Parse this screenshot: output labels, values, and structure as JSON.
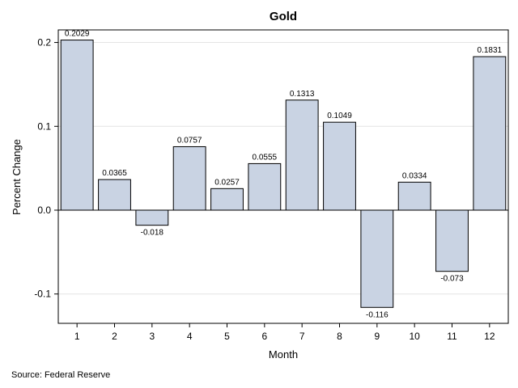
{
  "chart_data": {
    "type": "bar",
    "title": "Gold",
    "xlabel": "Month",
    "ylabel": "Percent Change",
    "categories": [
      "1",
      "2",
      "3",
      "4",
      "5",
      "6",
      "7",
      "8",
      "9",
      "10",
      "11",
      "12"
    ],
    "values": [
      0.2029,
      0.0365,
      -0.018,
      0.0757,
      0.0257,
      0.0555,
      0.1313,
      0.1049,
      -0.116,
      0.0334,
      -0.073,
      0.1831
    ],
    "value_labels": [
      "0.2029",
      "0.0365",
      "-0.018",
      "0.0757",
      "0.0257",
      "0.0555",
      "0.1313",
      "0.1049",
      "-0.116",
      "0.0334",
      "-0.073",
      "0.1831"
    ],
    "ylim": [
      -0.135,
      0.215
    ],
    "yticks": [
      -0.1,
      0.0,
      0.1,
      0.2
    ],
    "ytick_labels": [
      "-0.1",
      "0.0",
      "0.1",
      "0.2"
    ],
    "grid": true,
    "bar_color": "#c9d3e3",
    "bar_edge_color": "#000000",
    "footnote": "Source: Federal Reserve"
  }
}
